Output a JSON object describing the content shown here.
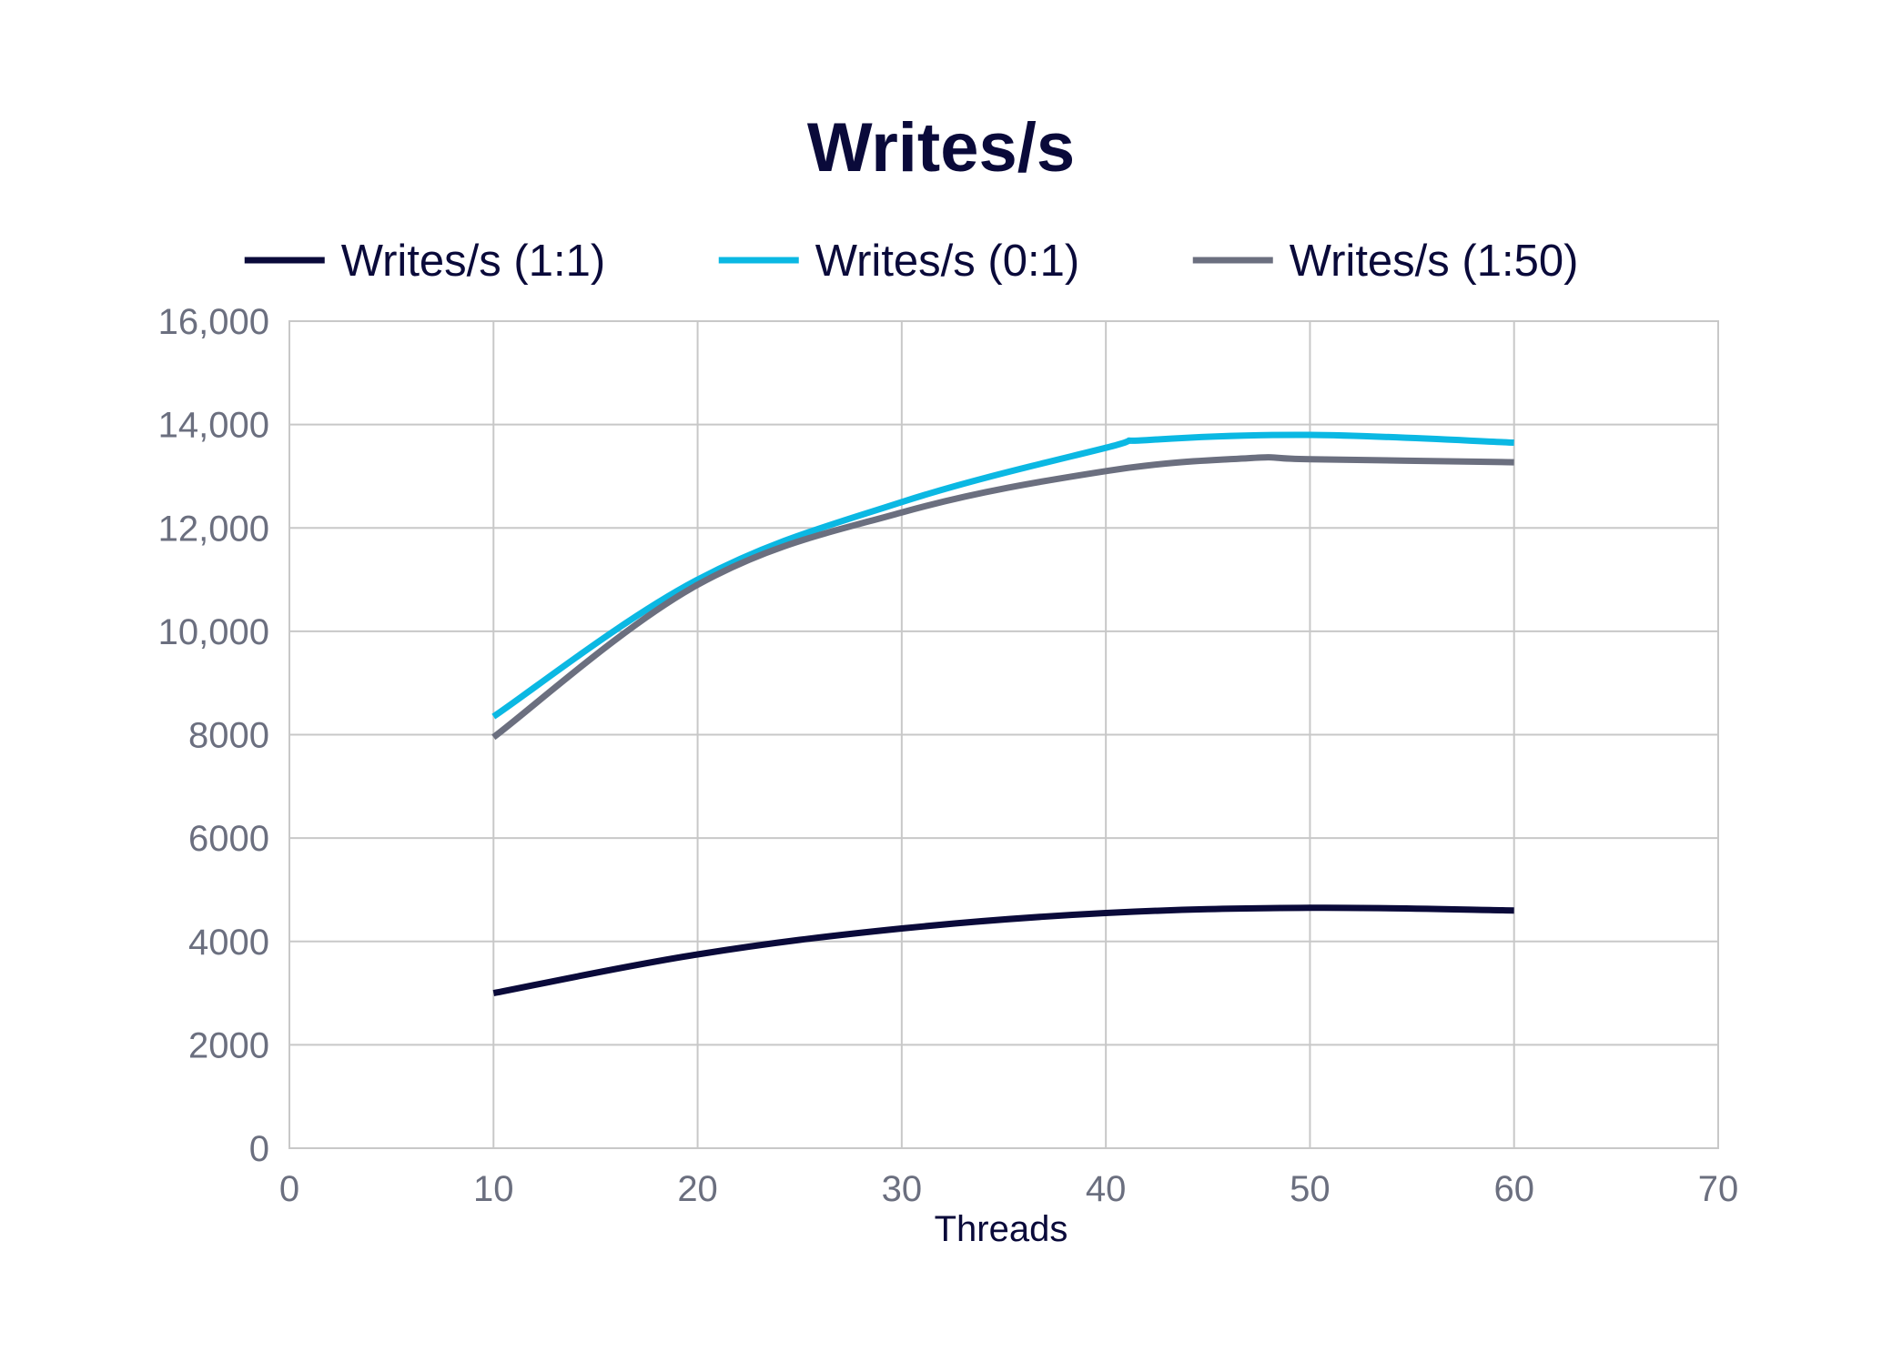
{
  "chart_data": {
    "type": "line",
    "title": "Writes/s",
    "xlabel": "Threads",
    "ylabel": "",
    "xlim": [
      0,
      70
    ],
    "ylim": [
      0,
      16000
    ],
    "x_ticks": [
      "0",
      "10",
      "20",
      "30",
      "40",
      "50",
      "60",
      "70"
    ],
    "y_ticks": [
      "0",
      "2000",
      "4000",
      "6000",
      "8000",
      "10,000",
      "12,000",
      "14,000",
      "16,000"
    ],
    "grid": true,
    "legend_position": "top",
    "smooth": true,
    "series": [
      {
        "name": "Writes/s (1:1)",
        "color": "#0a0a3a",
        "x": [
          10,
          20,
          30,
          40,
          50,
          60
        ],
        "y": [
          3000,
          3750,
          4250,
          4550,
          4650,
          4600
        ]
      },
      {
        "name": "Writes/s (0:1)",
        "color": "#0bb8e3",
        "x": [
          10,
          20,
          30,
          40,
          42,
          50,
          60
        ],
        "y": [
          8350,
          11000,
          12500,
          13550,
          13700,
          13800,
          13650
        ]
      },
      {
        "name": "Writes/s (1:50)",
        "color": "#6b6f7f",
        "x": [
          10,
          20,
          30,
          40,
          47,
          50,
          60
        ],
        "y": [
          7950,
          10900,
          12300,
          13100,
          13350,
          13330,
          13270
        ]
      }
    ]
  },
  "colors": {
    "title": "#0a0a3a",
    "tick_label": "#6b6f7f",
    "axis_label": "#0a0a3a",
    "legend_text": "#0a0a3a",
    "grid": "#c8c8c8",
    "background": "#ffffff"
  }
}
